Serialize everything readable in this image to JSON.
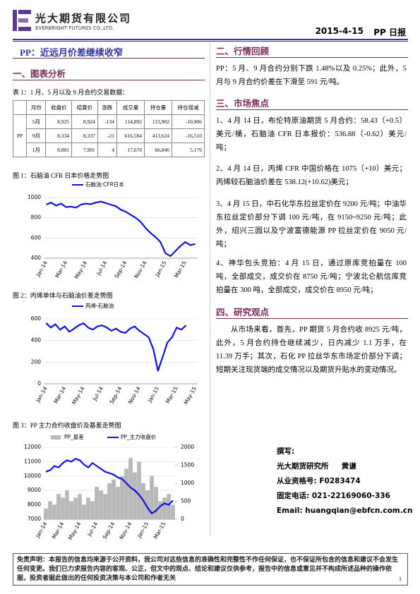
{
  "header": {
    "company": "光大期货有限公司",
    "company_en": "EVERBRIGHT FUTURES CO.,LTD.",
    "date": "2015-4-15",
    "report": "PP 日报"
  },
  "left": {
    "title": "PP：近远月价差继续收窄",
    "section": "一、图表分析",
    "table_caption": "表 1：1 月、5 月以及 9 月合约交易数据："
  },
  "table": {
    "header": [
      "月份",
      "收盘价",
      "结算价",
      "涨跌",
      "成交量",
      "持仓量",
      "持仓增减"
    ],
    "product": "PP",
    "rows": [
      [
        "5月",
        "8,925",
        "8,924",
        "-134",
        "114,892",
        "113,902",
        "-10,906"
      ],
      [
        "9月",
        "8,334",
        "8,337",
        "-21",
        "616,584",
        "413,624",
        "-16,510"
      ],
      [
        "1月",
        "8,001",
        "7,991",
        "4",
        "17,670",
        "66,846",
        "5,176"
      ]
    ]
  },
  "chart_data": [
    {
      "type": "line",
      "caption": "图 1：石脑油 CFR 日本价格走势图",
      "categories": [
        "Jan-14",
        null,
        null,
        null,
        "Mar-14",
        null,
        null,
        null,
        "May-14",
        null,
        null,
        null,
        "Jul-14",
        null,
        null,
        null,
        "Sep-14",
        null,
        null,
        null,
        "Nov-14",
        null,
        null,
        null,
        "Jan-15",
        null,
        null,
        null,
        "Mar-15",
        null,
        null
      ],
      "series": [
        {
          "name": "石脑油:CFR日本",
          "color": "#1010e0",
          "values": [
            930,
            950,
            920,
            940,
            905,
            910,
            900,
            930,
            940,
            935,
            950,
            960,
            945,
            930,
            915,
            880,
            860,
            830,
            800,
            760,
            700,
            650,
            610,
            560,
            450,
            420,
            470,
            520,
            560,
            530,
            540
          ]
        }
      ],
      "ylim": [
        400,
        1000
      ],
      "yticks": [
        400,
        600,
        800,
        1000
      ]
    },
    {
      "type": "line",
      "caption": "图 2：丙烯单体与石脑油价差走势图",
      "categories": [
        "Jan-14",
        null,
        null,
        null,
        "Mar-14",
        null,
        null,
        null,
        "May-14",
        null,
        null,
        null,
        "Jul-14",
        null,
        null,
        null,
        "Sep-14",
        null,
        null,
        null,
        "Nov-14",
        null,
        null,
        null,
        "Jan-15",
        null,
        null,
        null,
        "Mar-15",
        null,
        null,
        null,
        "May-15"
      ],
      "series": [
        {
          "name": "丙烯-石脑油",
          "color": "#1010e0",
          "values": [
            560,
            520,
            550,
            500,
            530,
            480,
            510,
            540,
            560,
            520,
            500,
            530,
            540,
            520,
            490,
            510,
            480,
            470,
            510,
            530,
            490,
            460,
            430,
            320,
            120,
            250,
            380,
            430,
            520,
            500,
            540,
            null,
            null
          ]
        }
      ],
      "ylim": [
        0,
        600
      ],
      "yticks": [
        0,
        200,
        400,
        600
      ]
    },
    {
      "type": "combo",
      "caption": "图 3：PP 主力合约收盘价及基差走势图",
      "categories": [
        "Jan-14",
        null,
        null,
        null,
        "Mar-14",
        null,
        null,
        null,
        "May-14",
        null,
        null,
        null,
        "Jul-14",
        null,
        null,
        null,
        "Sep-14",
        null,
        null,
        null,
        "Nov-14",
        null,
        null,
        null,
        "Jan-15",
        null,
        null,
        null,
        "Mar-15",
        null,
        null
      ],
      "series": [
        {
          "name": "PP_基差",
          "color": "#b8b8b8",
          "kind": "bar",
          "axis": "y2",
          "values": [
            300,
            500,
            400,
            700,
            600,
            800,
            500,
            600,
            700,
            400,
            600,
            500,
            900,
            800,
            700,
            1000,
            1100,
            900,
            1200,
            1400,
            1700,
            1300,
            1600,
            1000,
            800,
            1200,
            900,
            500,
            600,
            700,
            400
          ]
        },
        {
          "name": "PP_主力收盘价",
          "color": "#1010e0",
          "kind": "line",
          "values": [
            10300,
            10400,
            10700,
            10600,
            10900,
            11100,
            11000,
            11200,
            11100,
            10800,
            10600,
            10900,
            10700,
            10500,
            10300,
            10200,
            10100,
            9900,
            9800,
            9500,
            9200,
            9000,
            8700,
            8300,
            7800,
            7400,
            7600,
            7900,
            8100,
            8000,
            8300
          ]
        }
      ],
      "ylim": [
        7000,
        12000
      ],
      "yticks": [
        7000,
        8000,
        9000,
        10000,
        11000,
        12000
      ],
      "y2lim": [
        0,
        2000
      ],
      "y2ticks": [
        0,
        500,
        1000,
        1500,
        2000
      ]
    }
  ],
  "right": {
    "review_heading": "二、行情回顾",
    "review": "PP：5 月、9 月合约分别下跌 1.48%以及 0.25%；此外，5 月与 9 月合约价差在下滑至 591 元/吨。",
    "focus_heading": "三、市场焦点",
    "focus": [
      "1、4 月 14 日，布伦特原油期货 5 月合约：58.43（+0.5）美元/桶，石脑油 CFR 日本报价：536.88（-0.62）美元/吨；",
      "2、4 月 14 日，丙烯 CFR 中国价格在 1075（+10）美元；丙烯较石脑油价差在 538.12(+10.62)美元；",
      "3、4 月 15 日，中石化华东拉丝定价在 9200 元/吨；中油华东拉丝定价部分下调 100 元/吨，在 9150~9250 元/吨；此外，绍兴三圆以及宁波富德能源 PP 拉丝定价在 9050 元/吨；",
      "4、神华包头竞拍：4 月 15 日，通过原库竞拍量在 100 吨，全部成交，成交价在 8750 元/吨；宁波北仑航信库竞拍量在 300 吨，全部成交，成交价在 8950 元/吨；"
    ],
    "view_heading": "四、研究观点",
    "view": "从市场来看，首先，PP 期货 5 月合约收 8925 元/吨，此外，5 月合约持仓继续减少，日内减少 1.1 万手，在 11.39 万手；其次，石化 PP 拉丝华东市场定价部分下调；短期关注现货端的成交情况以及期货升贴水的变动情况。"
  },
  "author": {
    "label": "撰写:",
    "institute": "光大期货研究所",
    "name": "黄谦",
    "license": "从业资格号: F0283474",
    "phone": "固定电话: 021-22169060-336",
    "email": "Email: huangqian@ebfcn.com.cn"
  },
  "footer": {
    "disclaimer": "免责声明：本报告的信息均来源于公开资料，我公司对这些信息的准确性和完整性不作任何保证，也不保证所包含的信息和建议不会发生任何变更。我们已力求报告内容的客观、公正，但文中的观点、结论和建议仅供参考，报告中的信息或意见并不构成所述品种的操作依据，投资者据此做出的任何投资决策与本公司和作者无关",
    "page": "1"
  }
}
